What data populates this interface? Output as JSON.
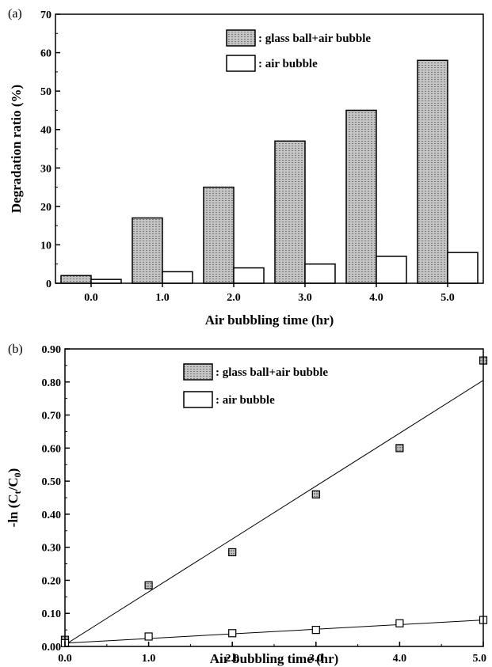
{
  "chart_data": [
    {
      "type": "bar",
      "panel_label": "(a)",
      "categories": [
        "0.0",
        "1.0",
        "2.0",
        "3.0",
        "4.0",
        "5.0"
      ],
      "series": [
        {
          "name": ": glass ball+air bubble",
          "values": [
            2,
            17,
            25,
            37,
            45,
            58
          ],
          "fill": "#c8c8c8",
          "pattern": "dotted"
        },
        {
          "name": ": air bubble",
          "values": [
            1,
            3,
            4,
            5,
            7,
            8
          ],
          "fill": "#ffffff"
        }
      ],
      "xlabel": "Air bubbling time (hr)",
      "ylabel": "Degradation ratio (%)",
      "ylim": [
        0,
        70
      ],
      "yticks": [
        "0",
        "10",
        "20",
        "30",
        "40",
        "50",
        "60",
        "70"
      ],
      "legend_position": "top-right",
      "grid": false
    },
    {
      "type": "scatter",
      "panel_label": "(b)",
      "xlabel": "Air bubbling time (hr)",
      "ylabel_main": "-ln (C",
      "ylabel_sub_t": "t",
      "ylabel_mid": "/C",
      "ylabel_sub_0": "0",
      "ylabel_end": ")",
      "xlim": [
        0,
        5
      ],
      "ylim": [
        0,
        0.9
      ],
      "xticks": [
        "0.0",
        "1.0",
        "2.0",
        "3.0",
        "4.0",
        "5.0"
      ],
      "yticks": [
        "0.00",
        "0.10",
        "0.20",
        "0.30",
        "0.40",
        "0.50",
        "0.60",
        "0.70",
        "0.80",
        "0.90"
      ],
      "series": [
        {
          "name": ": glass ball+air bubble",
          "x": [
            0,
            1,
            2,
            3,
            4,
            5
          ],
          "y": [
            0.02,
            0.185,
            0.285,
            0.46,
            0.6,
            0.865
          ],
          "marker": "square-dotted",
          "fit": [
            0.005,
            0.805
          ]
        },
        {
          "name": ": air bubble",
          "x": [
            0,
            1,
            2,
            3,
            4,
            5
          ],
          "y": [
            0.01,
            0.03,
            0.04,
            0.05,
            0.07,
            0.08
          ],
          "marker": "square-open",
          "fit": [
            0.01,
            0.08
          ]
        }
      ],
      "legend_position": "top-center",
      "grid": false
    }
  ]
}
